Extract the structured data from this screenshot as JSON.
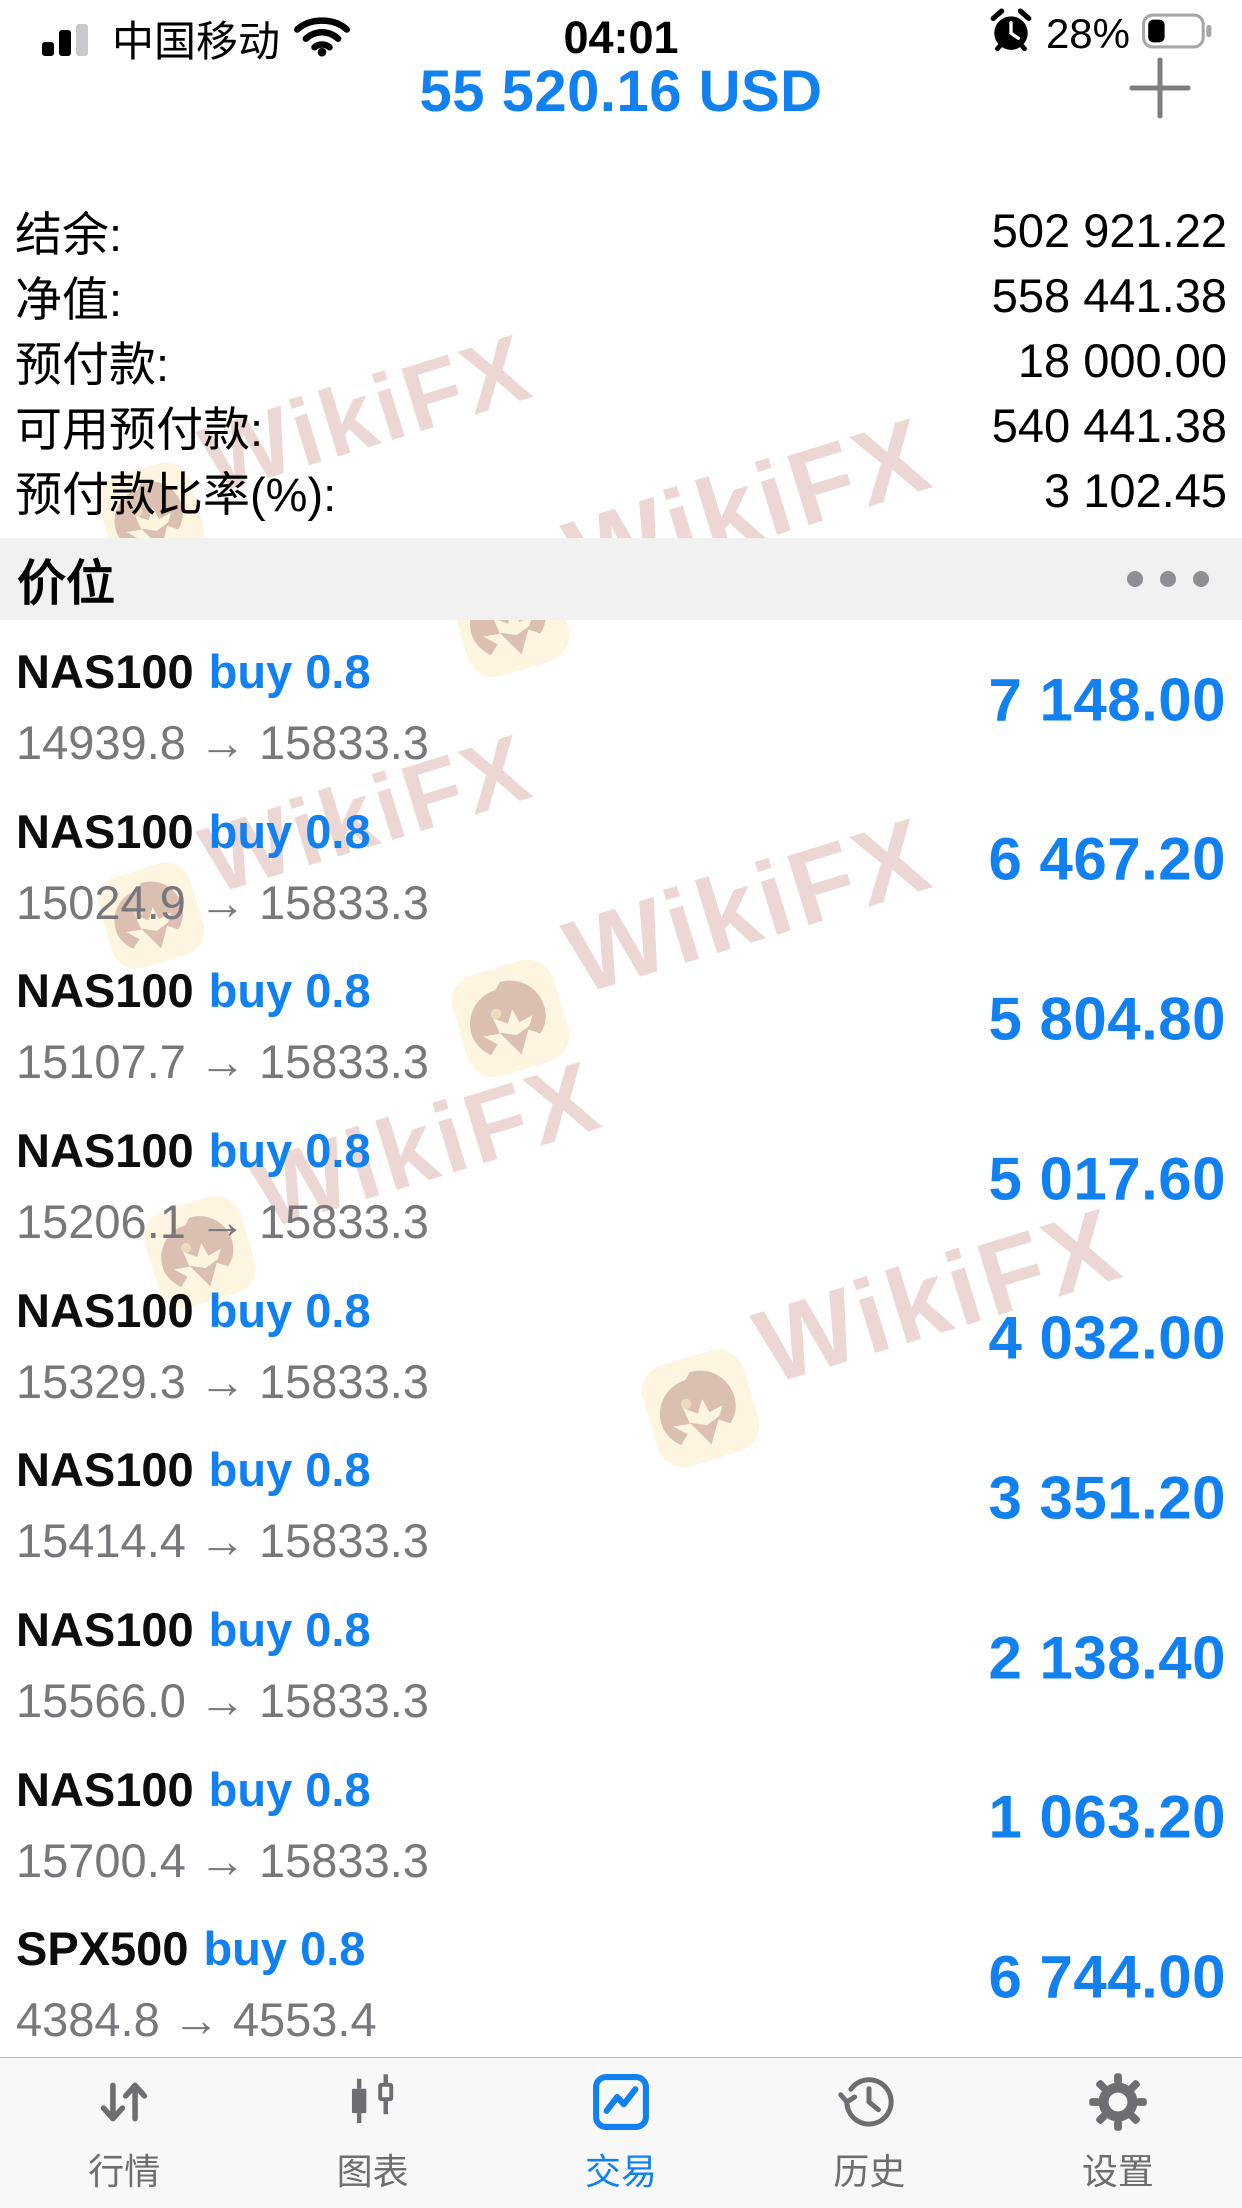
{
  "colors": {
    "accent": "#1181f2",
    "profit": "#1181f2",
    "price_grey": "#77777c",
    "section_bg": "#f1f1f2"
  },
  "status_bar": {
    "carrier": "中国移动",
    "time": "04:01",
    "battery": "28%"
  },
  "header": {
    "total": "55 520.16 USD",
    "add_label": "+"
  },
  "summary": [
    {
      "label": "结余:",
      "value": "502 921.22"
    },
    {
      "label": "净值:",
      "value": "558 441.38"
    },
    {
      "label": "预付款:",
      "value": "18 000.00"
    },
    {
      "label": "可用预付款:",
      "value": "540 441.38"
    },
    {
      "label": "预付款比率(%):",
      "value": "3 102.45"
    }
  ],
  "positions": {
    "section_title": "价位",
    "arrow_glyph": "→",
    "items": [
      {
        "symbol": "NAS100",
        "side": "buy",
        "volume": "0.8",
        "open": "14939.8",
        "current": "15833.3",
        "profit": "7 148.00"
      },
      {
        "symbol": "NAS100",
        "side": "buy",
        "volume": "0.8",
        "open": "15024.9",
        "current": "15833.3",
        "profit": "6 467.20"
      },
      {
        "symbol": "NAS100",
        "side": "buy",
        "volume": "0.8",
        "open": "15107.7",
        "current": "15833.3",
        "profit": "5 804.80"
      },
      {
        "symbol": "NAS100",
        "side": "buy",
        "volume": "0.8",
        "open": "15206.1",
        "current": "15833.3",
        "profit": "5 017.60"
      },
      {
        "symbol": "NAS100",
        "side": "buy",
        "volume": "0.8",
        "open": "15329.3",
        "current": "15833.3",
        "profit": "4 032.00"
      },
      {
        "symbol": "NAS100",
        "side": "buy",
        "volume": "0.8",
        "open": "15414.4",
        "current": "15833.3",
        "profit": "3 351.20"
      },
      {
        "symbol": "NAS100",
        "side": "buy",
        "volume": "0.8",
        "open": "15566.0",
        "current": "15833.3",
        "profit": "2 138.40"
      },
      {
        "symbol": "NAS100",
        "side": "buy",
        "volume": "0.8",
        "open": "15700.4",
        "current": "15833.3",
        "profit": "1 063.20"
      },
      {
        "symbol": "SPX500",
        "side": "buy",
        "volume": "0.8",
        "open": "4384.8",
        "current": "4553.4",
        "profit": "6 744.00"
      }
    ]
  },
  "tab_bar": [
    {
      "label": "行情",
      "icon": "arrows-up-down-icon",
      "active": false
    },
    {
      "label": "图表",
      "icon": "candlestick-icon",
      "active": false
    },
    {
      "label": "交易",
      "icon": "trade-chart-icon",
      "active": true
    },
    {
      "label": "历史",
      "icon": "history-clock-icon",
      "active": false
    },
    {
      "label": "设置",
      "icon": "gear-icon",
      "active": false
    }
  ],
  "watermark": {
    "text": "WikiFX"
  }
}
